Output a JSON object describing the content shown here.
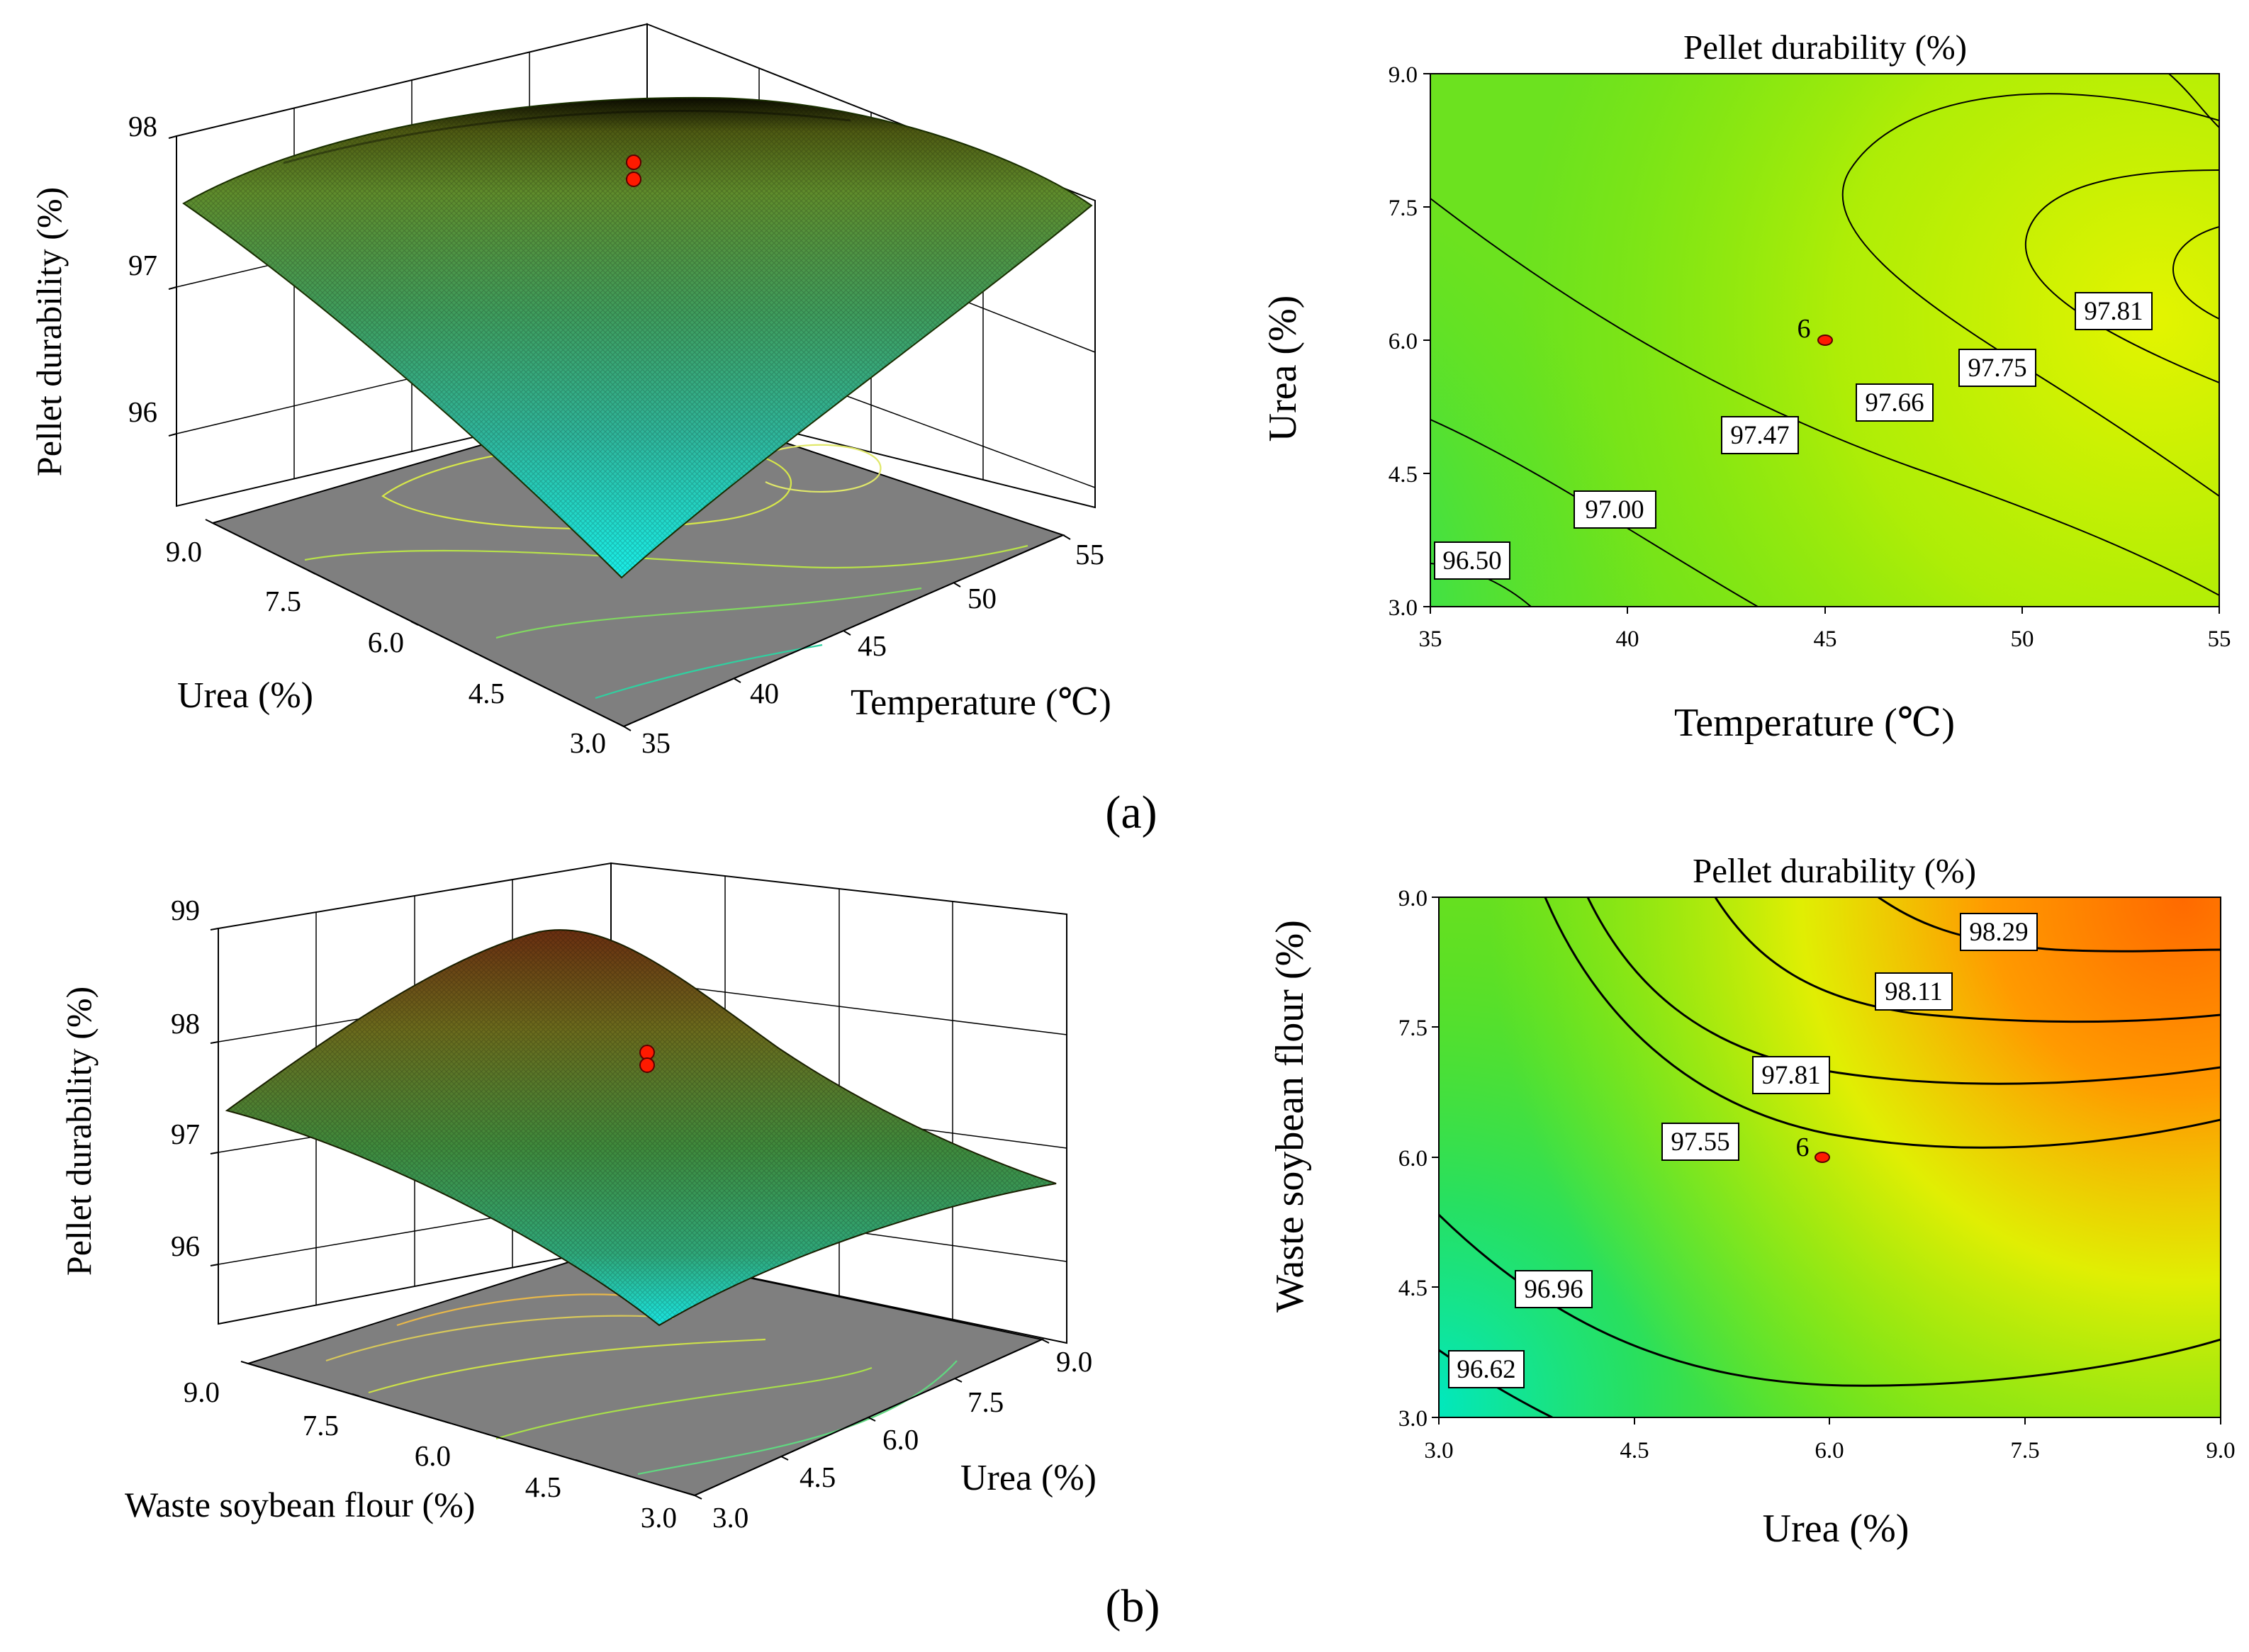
{
  "panels": {
    "a": {
      "caption": "(a)"
    },
    "b": {
      "caption": "(b)"
    }
  },
  "chart_data": [
    {
      "id": "a-surface",
      "type": "surface3d",
      "title": "",
      "zlabel": "Pellet durability (%)",
      "xlabel": "Temperature (℃)",
      "ylabel": "Urea (%)",
      "x_ticks": [
        "35",
        "40",
        "45",
        "50",
        "55"
      ],
      "y_ticks": [
        "3.0",
        "4.5",
        "6.0",
        "7.5",
        "9.0"
      ],
      "z_ticks": [
        "96",
        "97",
        "98"
      ],
      "xlim": [
        35,
        55
      ],
      "ylim": [
        3.0,
        9.0
      ],
      "zlim": [
        95.5,
        98
      ],
      "corner_values": {
        "x35_y3": 95.6,
        "x55_y3": 97.45,
        "x35_y9": 97.55,
        "x55_y9": 97.4
      },
      "peak": {
        "x": 50,
        "y": 7.5,
        "z": 98.0
      },
      "design_points": [
        {
          "x": 45,
          "y": 6.0,
          "z": 97.68
        },
        {
          "x": 45,
          "y": 6.0,
          "z": 97.62
        }
      ],
      "surface_colormap": [
        "#00ffff",
        "#3aa57a",
        "#6a9a30",
        "#111100"
      ]
    },
    {
      "id": "a-contour",
      "type": "contour",
      "title": "Pellet durability (%)",
      "xlabel": "Temperature (℃)",
      "ylabel": "Urea (%)",
      "x_ticks": [
        "35",
        "40",
        "45",
        "50",
        "55"
      ],
      "y_ticks": [
        "3.0",
        "4.5",
        "6.0",
        "7.5",
        "9.0"
      ],
      "xlim": [
        35,
        55
      ],
      "ylim": [
        3.0,
        9.0
      ],
      "contour_levels": [
        {
          "label": "96.50",
          "x": 36.3,
          "y": 3.5
        },
        {
          "label": "97.00",
          "x": 40.0,
          "y": 4.05
        },
        {
          "label": "97.47",
          "x": 43.1,
          "y": 4.95
        },
        {
          "label": "97.66",
          "x": 46.8,
          "y": 5.3
        },
        {
          "label": "97.75",
          "x": 50.6,
          "y": 5.85
        },
        {
          "label": "97.81",
          "x": 52.6,
          "y": 6.35
        }
      ],
      "design_point": {
        "x": 45,
        "y": 6.0,
        "label": "6"
      },
      "colormap": [
        "#00e5a0",
        "#33dd33",
        "#99ee00",
        "#ddf000"
      ]
    },
    {
      "id": "b-surface",
      "type": "surface3d",
      "title": "",
      "zlabel": "Pellet durability (%)",
      "xlabel": "Urea (%)",
      "ylabel": "Waste soybean flour (%)",
      "x_ticks": [
        "3.0",
        "4.5",
        "6.0",
        "7.5",
        "9.0"
      ],
      "y_ticks": [
        "3.0",
        "4.5",
        "6.0",
        "7.5",
        "9.0"
      ],
      "z_ticks": [
        "96",
        "97",
        "98",
        "99"
      ],
      "xlim": [
        3.0,
        9.0
      ],
      "ylim": [
        3.0,
        9.0
      ],
      "zlim": [
        95.5,
        99
      ],
      "corner_values": {
        "x3_y3": 96.55,
        "x9_y3": 97.15,
        "x3_y9": 97.3,
        "x9_y9": 98.3
      },
      "design_points": [
        {
          "x": 6.0,
          "y": 6.0,
          "z": 97.58
        },
        {
          "x": 6.0,
          "y": 6.0,
          "z": 97.5
        }
      ],
      "surface_colormap": [
        "#00ffff",
        "#3aa57a",
        "#6a9a30",
        "#ff8000"
      ]
    },
    {
      "id": "b-contour",
      "type": "contour",
      "title": "Pellet durability (%)",
      "xlabel": "Urea (%)",
      "ylabel": "Waste soybean flour (%)",
      "x_ticks": [
        "3.0",
        "4.5",
        "6.0",
        "7.5",
        "9.0"
      ],
      "y_ticks": [
        "3.0",
        "4.5",
        "6.0",
        "7.5",
        "9.0"
      ],
      "xlim": [
        3.0,
        9.0
      ],
      "ylim": [
        3.0,
        9.0
      ],
      "contour_levels": [
        {
          "label": "96.62",
          "x": 3.55,
          "y": 3.55
        },
        {
          "label": "96.96",
          "x": 4.4,
          "y": 4.47
        },
        {
          "label": "97.55",
          "x": 4.95,
          "y": 6.2
        },
        {
          "label": "97.81",
          "x": 5.9,
          "y": 6.95
        },
        {
          "label": "98.11",
          "x": 6.8,
          "y": 8.05
        },
        {
          "label": "98.29",
          "x": 7.7,
          "y": 8.6
        }
      ],
      "design_point": {
        "x": 6.0,
        "y": 6.0,
        "label": "6"
      },
      "colormap": [
        "#00e5a0",
        "#33dd33",
        "#ccf000",
        "#ff6600"
      ]
    }
  ]
}
